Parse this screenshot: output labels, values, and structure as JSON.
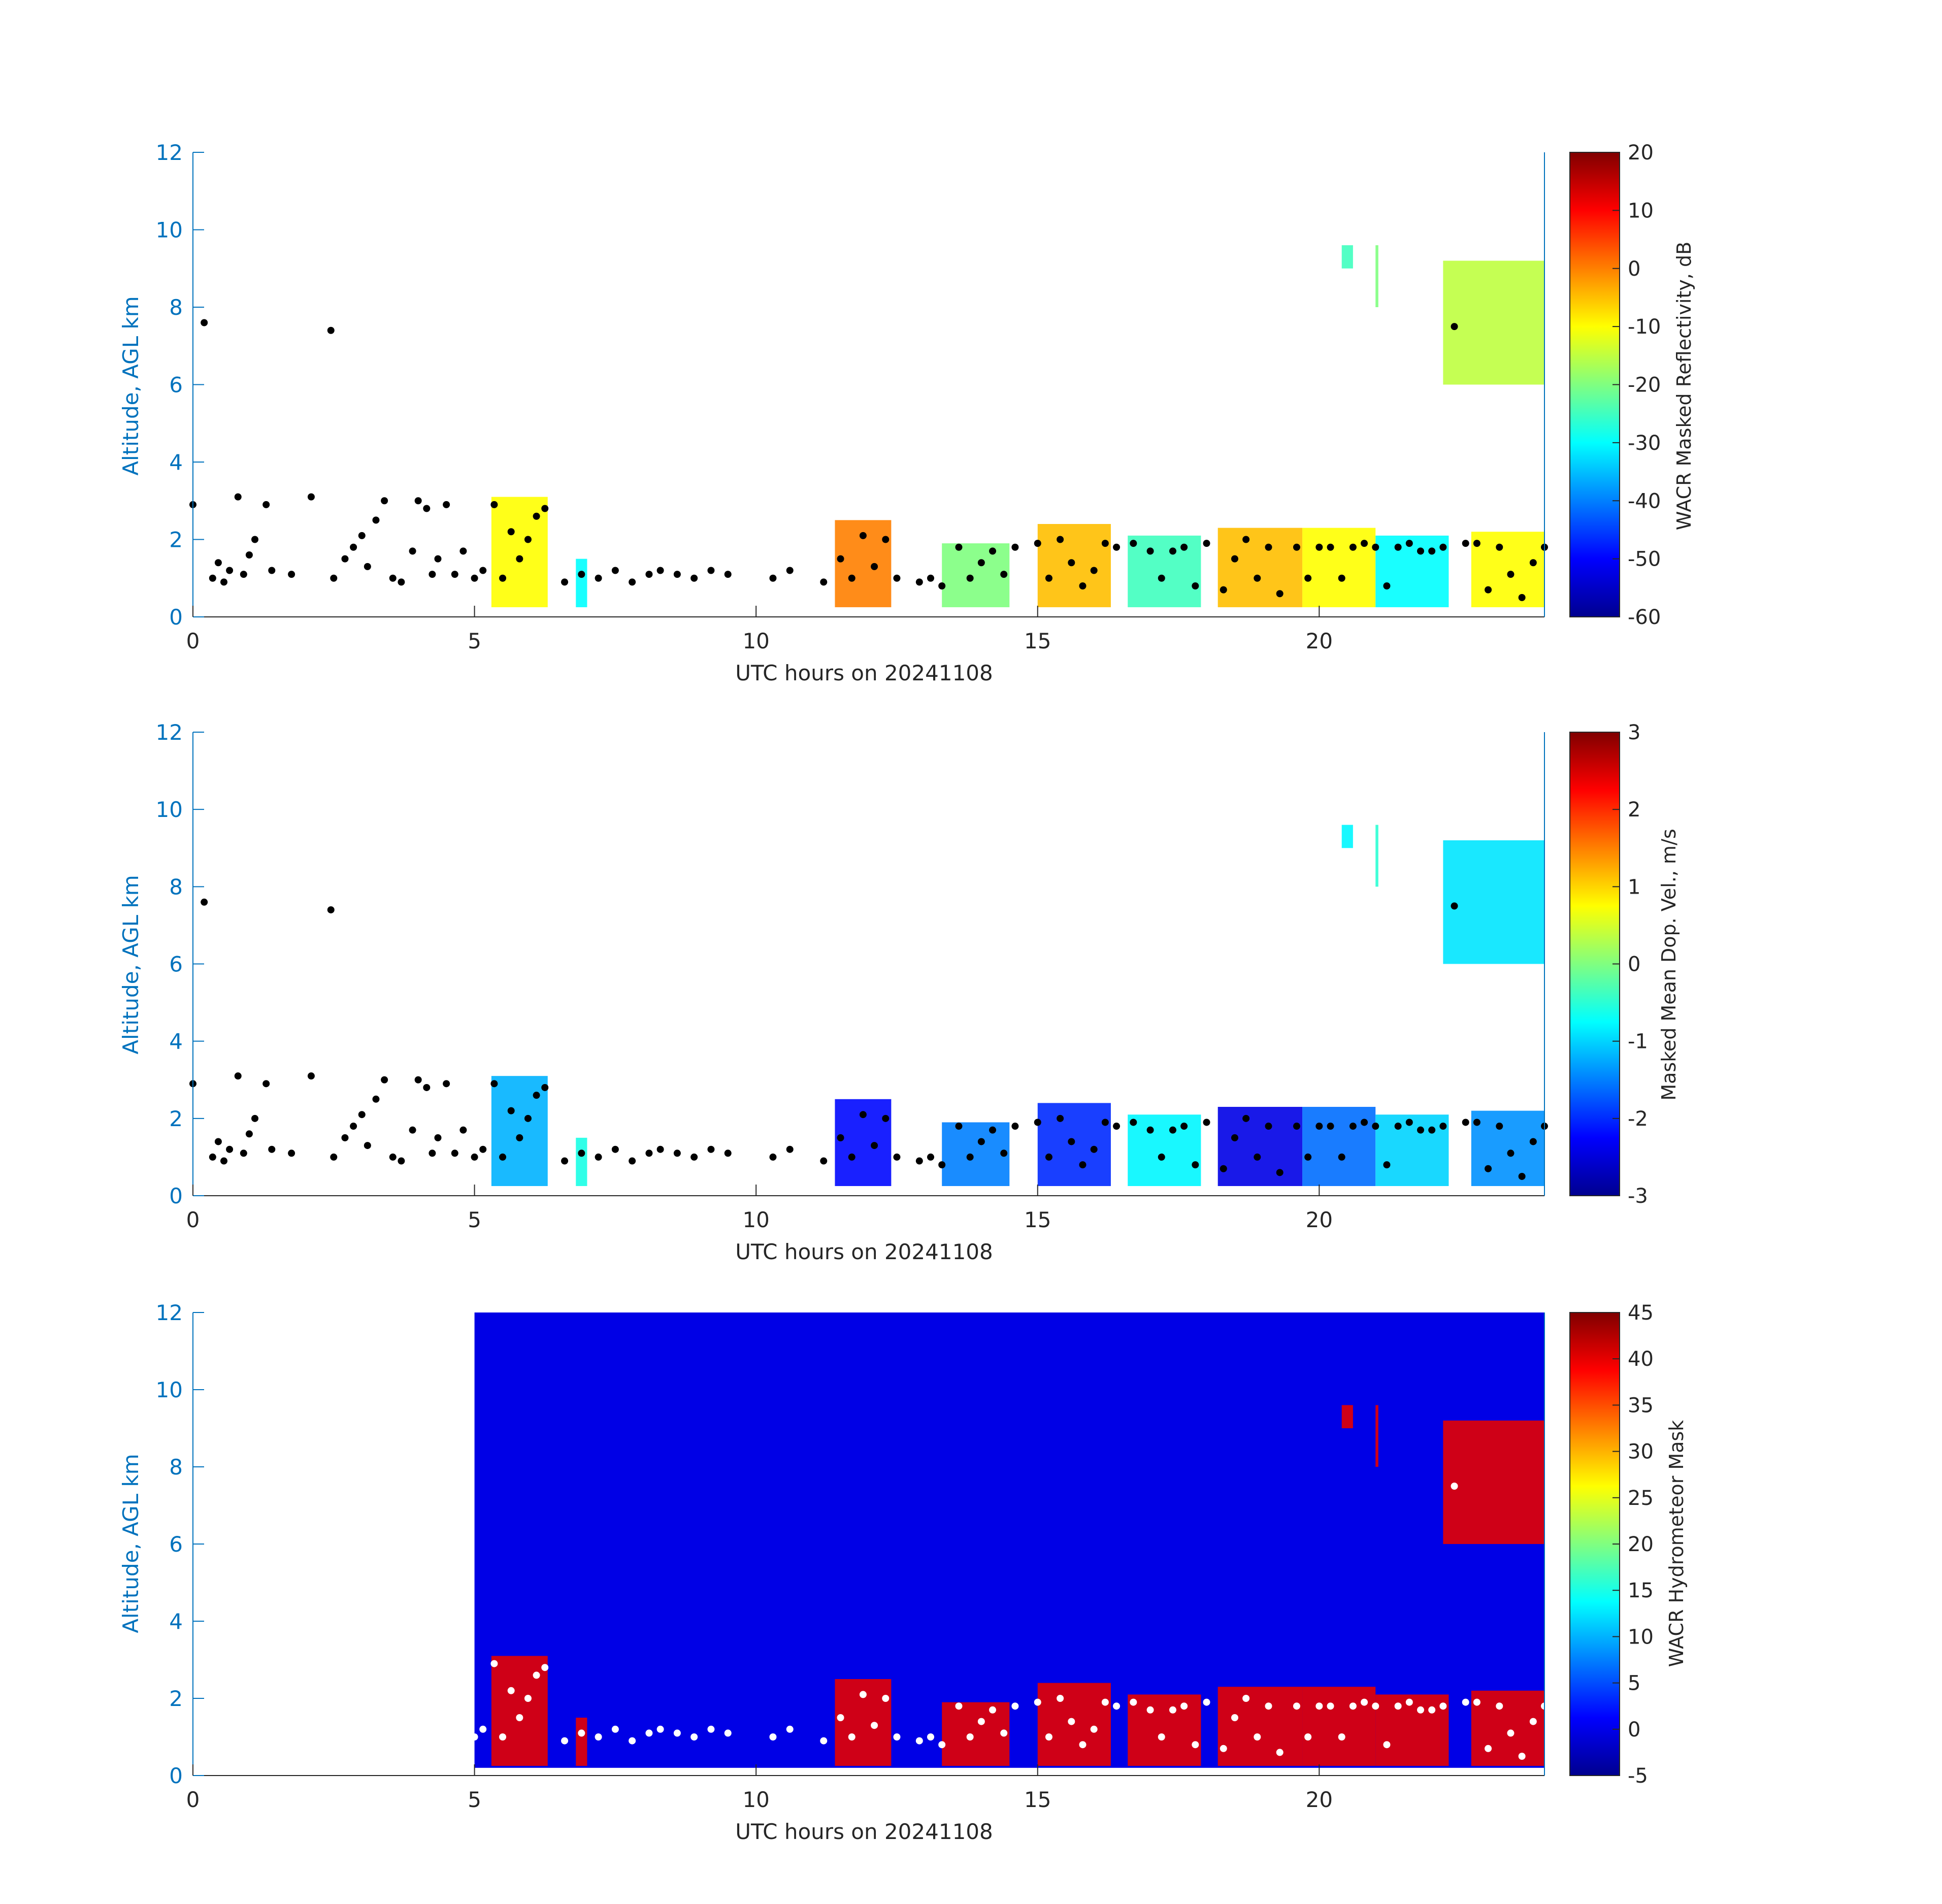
{
  "chart_data": [
    {
      "type": "heatmap",
      "xlabel": "UTC hours on 20241108",
      "ylabel": "Altitude, AGL km",
      "xlim": [
        0,
        24
      ],
      "ylim": [
        0,
        12
      ],
      "x_ticks": [
        0,
        5,
        10,
        15,
        20
      ],
      "y_ticks": [
        0,
        2,
        4,
        6,
        8,
        10,
        12
      ],
      "colorbar": {
        "label": "WACR Masked Reflectivity, dB",
        "range": [
          -60,
          20
        ],
        "ticks": [
          20,
          10,
          0,
          -10,
          -20,
          -30,
          -40,
          -50,
          -60
        ],
        "colormap": "jet"
      },
      "cloud_base_marker_color": "#000000",
      "echo_segments": [
        {
          "t0": 5.3,
          "t1": 6.3,
          "ztop": 3.1,
          "value": -10
        },
        {
          "t0": 6.8,
          "t1": 7.0,
          "ztop": 1.5,
          "value": -30
        },
        {
          "t0": 11.4,
          "t1": 12.4,
          "ztop": 2.5,
          "value": 0
        },
        {
          "t0": 13.3,
          "t1": 14.5,
          "ztop": 1.9,
          "value": -20
        },
        {
          "t0": 15.0,
          "t1": 16.3,
          "ztop": 2.4,
          "value": -5
        },
        {
          "t0": 16.6,
          "t1": 17.9,
          "ztop": 2.1,
          "value": -25
        },
        {
          "t0": 18.2,
          "t1": 19.7,
          "ztop": 2.3,
          "value": -5
        },
        {
          "t0": 19.7,
          "t1": 21.0,
          "ztop": 2.3,
          "value": -10
        },
        {
          "t0": 21.0,
          "t1": 22.3,
          "ztop": 2.1,
          "value": -30
        },
        {
          "t0": 22.7,
          "t1": 24.0,
          "ztop": 2.2,
          "value": -10
        },
        {
          "t0": 20.4,
          "t1": 20.6,
          "z0": 9.0,
          "z1": 9.6,
          "value": -25
        },
        {
          "t0": 21.0,
          "t1": 21.05,
          "z0": 8.0,
          "z1": 9.6,
          "value": -20
        },
        {
          "t0": 22.2,
          "t1": 24.0,
          "z0": 6.0,
          "z1": 9.2,
          "value": -15
        }
      ]
    },
    {
      "type": "heatmap",
      "xlabel": "UTC hours on 20241108",
      "ylabel": "Altitude, AGL km",
      "xlim": [
        0,
        24
      ],
      "ylim": [
        0,
        12
      ],
      "x_ticks": [
        0,
        5,
        10,
        15,
        20
      ],
      "y_ticks": [
        0,
        2,
        4,
        6,
        8,
        10,
        12
      ],
      "colorbar": {
        "label": "Masked Mean Dop. Vel., m/s",
        "range": [
          -3,
          3
        ],
        "ticks": [
          3,
          2,
          1,
          0,
          -1,
          -2,
          -3
        ],
        "colormap": "jet"
      },
      "cloud_base_marker_color": "#000000",
      "echo_segments": [
        {
          "t0": 5.3,
          "t1": 6.3,
          "ztop": 3.1,
          "value": -1.2
        },
        {
          "t0": 6.8,
          "t1": 7.0,
          "ztop": 1.5,
          "value": -0.6
        },
        {
          "t0": 11.4,
          "t1": 12.4,
          "ztop": 2.5,
          "value": -2.2
        },
        {
          "t0": 13.3,
          "t1": 14.5,
          "ztop": 1.9,
          "value": -1.5
        },
        {
          "t0": 15.0,
          "t1": 16.3,
          "ztop": 2.4,
          "value": -2.0
        },
        {
          "t0": 16.6,
          "t1": 17.9,
          "ztop": 2.1,
          "value": -0.8
        },
        {
          "t0": 18.2,
          "t1": 19.7,
          "ztop": 2.3,
          "value": -2.4
        },
        {
          "t0": 19.7,
          "t1": 21.0,
          "ztop": 2.3,
          "value": -1.6
        },
        {
          "t0": 21.0,
          "t1": 22.3,
          "ztop": 2.1,
          "value": -1.0
        },
        {
          "t0": 22.7,
          "t1": 24.0,
          "ztop": 2.2,
          "value": -1.4
        },
        {
          "t0": 20.4,
          "t1": 20.6,
          "z0": 9.0,
          "z1": 9.6,
          "value": -0.8
        },
        {
          "t0": 21.0,
          "t1": 21.05,
          "z0": 8.0,
          "z1": 9.6,
          "value": -0.5
        },
        {
          "t0": 22.2,
          "t1": 24.0,
          "z0": 6.0,
          "z1": 9.2,
          "value": -0.9
        }
      ]
    },
    {
      "type": "heatmap",
      "xlabel": "UTC hours on 20241108",
      "ylabel": "Altitude, AGL km",
      "xlim": [
        0,
        24
      ],
      "ylim": [
        0,
        12
      ],
      "x_ticks": [
        0,
        5,
        10,
        15,
        20
      ],
      "y_ticks": [
        0,
        2,
        4,
        6,
        8,
        10,
        12
      ],
      "colorbar": {
        "label": "WACR Hydrometeor Mask",
        "range": [
          -5,
          45
        ],
        "ticks": [
          45,
          40,
          35,
          30,
          25,
          20,
          15,
          10,
          5,
          0,
          -5
        ],
        "colormap": "jet"
      },
      "background": {
        "t0": 5.0,
        "t1": 24.0,
        "z0": 0.2,
        "z1": 12.0,
        "value": 0
      },
      "cloud_base_marker_color": "#ffffff",
      "echo_segments": [
        {
          "t0": 5.3,
          "t1": 6.3,
          "ztop": 3.1,
          "value": 40
        },
        {
          "t0": 6.8,
          "t1": 7.0,
          "ztop": 1.5,
          "value": 40
        },
        {
          "t0": 11.4,
          "t1": 12.4,
          "ztop": 2.5,
          "value": 40
        },
        {
          "t0": 13.3,
          "t1": 14.5,
          "ztop": 1.9,
          "value": 40
        },
        {
          "t0": 15.0,
          "t1": 16.3,
          "ztop": 2.4,
          "value": 40
        },
        {
          "t0": 16.6,
          "t1": 17.9,
          "ztop": 2.1,
          "value": 40
        },
        {
          "t0": 18.2,
          "t1": 19.7,
          "ztop": 2.3,
          "value": 40
        },
        {
          "t0": 19.7,
          "t1": 21.0,
          "ztop": 2.3,
          "value": 40
        },
        {
          "t0": 21.0,
          "t1": 22.3,
          "ztop": 2.1,
          "value": 40
        },
        {
          "t0": 22.7,
          "t1": 24.0,
          "ztop": 2.2,
          "value": 40
        },
        {
          "t0": 20.4,
          "t1": 20.6,
          "z0": 9.0,
          "z1": 9.6,
          "value": 40
        },
        {
          "t0": 21.0,
          "t1": 21.05,
          "z0": 8.0,
          "z1": 9.6,
          "value": 40
        },
        {
          "t0": 22.2,
          "t1": 24.0,
          "z0": 6.0,
          "z1": 9.2,
          "value": 40
        }
      ]
    }
  ],
  "cloud_base_heights": {
    "time_utc": [
      0.0,
      0.2,
      0.35,
      0.45,
      0.55,
      0.65,
      0.8,
      0.9,
      1.0,
      1.1,
      1.3,
      1.4,
      1.75,
      2.1,
      2.45,
      2.5,
      2.7,
      2.85,
      3.0,
      3.1,
      3.25,
      3.4,
      3.55,
      3.7,
      3.9,
      4.0,
      4.15,
      4.25,
      4.35,
      4.5,
      4.65,
      4.8,
      5.0,
      5.15,
      5.35,
      5.5,
      5.65,
      5.8,
      5.95,
      6.1,
      6.25,
      6.6,
      6.9,
      7.2,
      7.5,
      7.8,
      8.1,
      8.3,
      8.6,
      8.9,
      9.2,
      9.5,
      10.3,
      10.6,
      11.2,
      11.5,
      11.7,
      11.9,
      12.1,
      12.3,
      12.5,
      12.9,
      13.1,
      13.3,
      13.6,
      13.8,
      14.0,
      14.2,
      14.4,
      14.6,
      15.0,
      15.2,
      15.4,
      15.6,
      15.8,
      16.0,
      16.2,
      16.4,
      16.7,
      17.0,
      17.2,
      17.4,
      17.6,
      17.8,
      18.0,
      18.3,
      18.5,
      18.7,
      18.9,
      19.1,
      19.3,
      19.6,
      19.8,
      20.0,
      20.2,
      20.4,
      20.6,
      20.8,
      21.0,
      21.2,
      21.4,
      21.6,
      21.8,
      22.0,
      22.2,
      22.4,
      22.6,
      22.8,
      23.0,
      23.2,
      23.4,
      23.6,
      23.8,
      24.0
    ],
    "altitude_km": [
      2.9,
      7.6,
      1.0,
      1.4,
      0.9,
      1.2,
      3.1,
      1.1,
      1.6,
      2.0,
      2.9,
      1.2,
      1.1,
      3.1,
      7.4,
      1.0,
      1.5,
      1.8,
      2.1,
      1.3,
      2.5,
      3.0,
      1.0,
      0.9,
      1.7,
      3.0,
      2.8,
      1.1,
      1.5,
      2.9,
      1.1,
      1.7,
      1.0,
      1.2,
      2.9,
      1.0,
      2.2,
      1.5,
      2.0,
      2.6,
      2.8,
      0.9,
      1.1,
      1.0,
      1.2,
      0.9,
      1.1,
      1.2,
      1.1,
      1.0,
      1.2,
      1.1,
      1.0,
      1.2,
      0.9,
      1.5,
      1.0,
      2.1,
      1.3,
      2.0,
      1.0,
      0.9,
      1.0,
      0.8,
      1.8,
      1.0,
      1.4,
      1.7,
      1.1,
      1.8,
      1.9,
      1.0,
      2.0,
      1.4,
      0.8,
      1.2,
      1.9,
      1.8,
      1.9,
      1.7,
      1.0,
      1.7,
      1.8,
      0.8,
      1.9,
      0.7,
      1.5,
      2.0,
      1.0,
      1.8,
      0.6,
      1.8,
      1.0,
      1.8,
      1.8,
      1.0,
      1.8,
      1.9,
      1.8,
      0.8,
      1.8,
      1.9,
      1.7,
      1.7,
      1.8,
      7.5,
      1.9,
      1.9,
      0.7,
      1.8,
      1.1,
      0.5,
      1.4,
      1.8
    ]
  }
}
